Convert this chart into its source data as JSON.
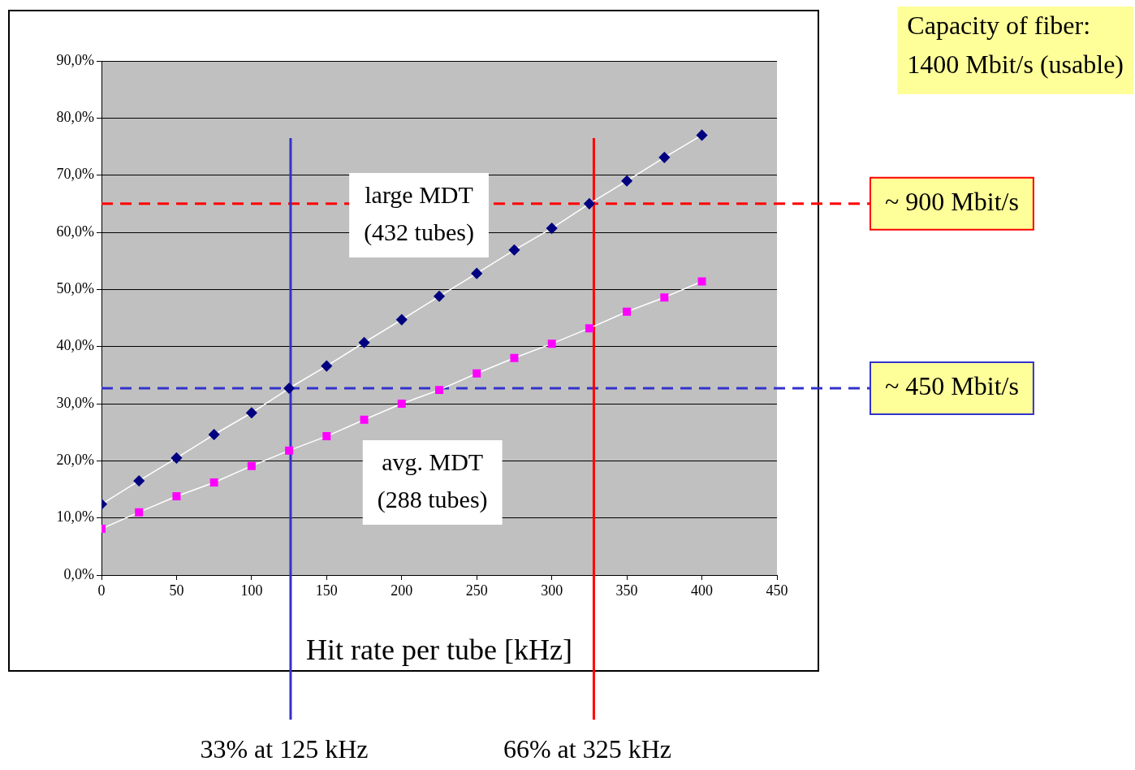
{
  "chart_data": {
    "type": "line",
    "xlabel": "Hit rate per tube [kHz]",
    "x": [
      0,
      25,
      50,
      75,
      100,
      125,
      150,
      175,
      200,
      225,
      250,
      275,
      300,
      325,
      350,
      375,
      400
    ],
    "series": [
      {
        "name": "large MDT (432 tubes)",
        "color": "#000080",
        "marker": "diamond",
        "values": [
          12.4,
          16.5,
          20.5,
          24.6,
          28.4,
          32.7,
          36.6,
          40.7,
          44.7,
          48.8,
          52.8,
          56.9,
          60.7,
          65.0,
          69.0,
          73.1,
          77.0
        ]
      },
      {
        "name": "avg. MDT (288 tubes)",
        "color": "#ff00ff",
        "marker": "square",
        "values": [
          8.1,
          11.0,
          13.8,
          16.2,
          19.1,
          21.8,
          24.3,
          27.2,
          30.0,
          32.4,
          35.3,
          38.0,
          40.5,
          43.2,
          46.1,
          48.6,
          51.4
        ]
      }
    ],
    "xlim": [
      0,
      450
    ],
    "xticks": [
      0,
      50,
      100,
      150,
      200,
      250,
      300,
      350,
      400,
      450
    ],
    "ylim": [
      0,
      90
    ],
    "yticks": [
      {
        "value": 0,
        "label": "0,0%"
      },
      {
        "value": 10,
        "label": "10,0%"
      },
      {
        "value": 20,
        "label": "20,0%"
      },
      {
        "value": 30,
        "label": "30,0%"
      },
      {
        "value": 40,
        "label": "40,0%"
      },
      {
        "value": 50,
        "label": "50,0%"
      },
      {
        "value": 60,
        "label": "60,0%"
      },
      {
        "value": 70,
        "label": "70,0%"
      },
      {
        "value": 80,
        "label": "80,0%"
      },
      {
        "value": 90,
        "label": "90,0%"
      }
    ],
    "grid": "y",
    "legend": false,
    "line_style": "solid",
    "ref_lines": [
      {
        "axis": "y",
        "value": 65,
        "label": "~ 900 Mbit/s",
        "color": "#ff0000",
        "line_style": "dashed"
      },
      {
        "axis": "y",
        "value": 32.7,
        "label": "~ 450 Mbit/s",
        "color": "#3333cc",
        "line_style": "dashed"
      },
      {
        "axis": "x",
        "value": 126,
        "label": "33% at 125 kHz",
        "color": "#3333cc",
        "line_style": "solid"
      },
      {
        "axis": "x",
        "value": 328,
        "label": "66% at 325 kHz",
        "color": "#ff0000",
        "line_style": "solid"
      }
    ],
    "annotations": [
      "Capacity of fiber: 1400 Mbit/s (usable)"
    ]
  }
}
